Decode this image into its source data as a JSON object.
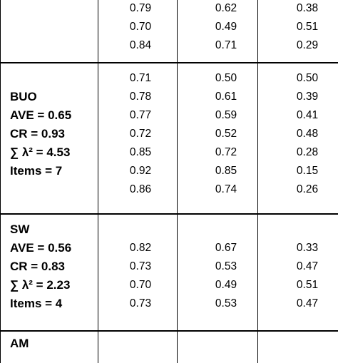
{
  "sections": [
    {
      "labels": [],
      "rows": [
        [
          "0.79",
          "0.62",
          "0.38"
        ],
        [
          "0.70",
          "0.49",
          "0.51"
        ],
        [
          "0.84",
          "0.71",
          "0.29"
        ]
      ]
    },
    {
      "labels": [
        "",
        "BUO",
        "AVE = 0.65",
        "CR = 0.93",
        "∑ λ² = 4.53",
        "Items = 7",
        ""
      ],
      "rows": [
        [
          "0.71",
          "0.50",
          "0.50"
        ],
        [
          "0.78",
          "0.61",
          "0.39"
        ],
        [
          "0.77",
          "0.59",
          "0.41"
        ],
        [
          "0.72",
          "0.52",
          "0.48"
        ],
        [
          "0.85",
          "0.72",
          "0.28"
        ],
        [
          "0.92",
          "0.85",
          "0.15"
        ],
        [
          "0.86",
          "0.74",
          "0.26"
        ]
      ]
    },
    {
      "labels": [
        "SW",
        "AVE = 0.56",
        "CR = 0.83",
        "∑ λ² = 2.23",
        "Items = 4"
      ],
      "rows": [
        [
          "",
          "",
          ""
        ],
        [
          "0.82",
          "0.67",
          "0.33"
        ],
        [
          "0.73",
          "0.53",
          "0.47"
        ],
        [
          "0.70",
          "0.49",
          "0.51"
        ],
        [
          "0.73",
          "0.53",
          "0.47"
        ]
      ]
    },
    {
      "labels": [
        "AM"
      ],
      "rows": []
    }
  ]
}
